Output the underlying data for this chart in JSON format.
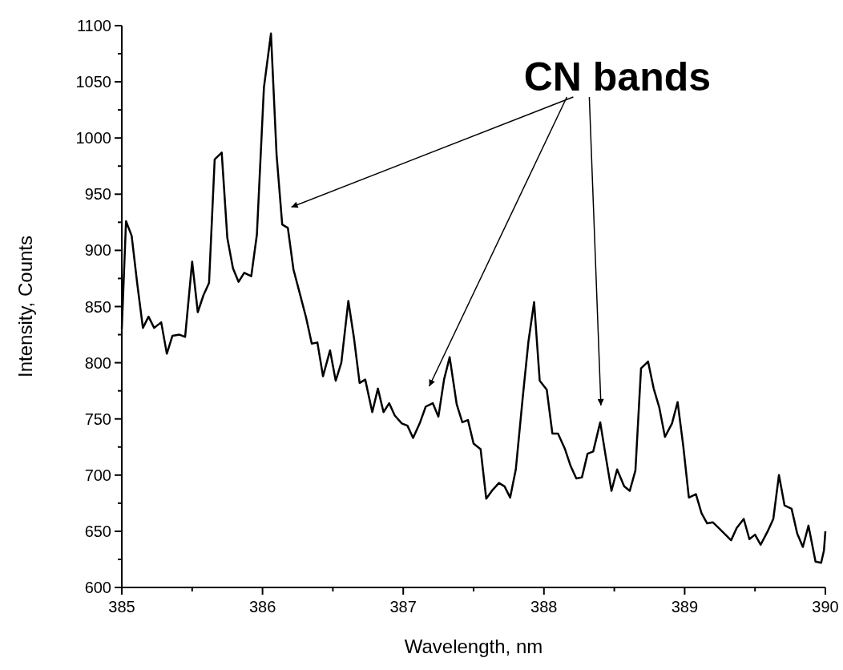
{
  "chart_data": {
    "type": "line",
    "xlabel": "Wavelength, nm",
    "ylabel": "Intensity, Counts",
    "annotations": [
      "CN bands"
    ],
    "xlim": [
      385,
      390
    ],
    "xticks": [
      385,
      386,
      387,
      388,
      389,
      390
    ],
    "ylim": [
      600,
      1100
    ],
    "yticks": [
      600,
      650,
      700,
      750,
      800,
      850,
      900,
      950,
      1000,
      1050,
      1100
    ],
    "grid": false,
    "line_style": "solid",
    "series": [
      {
        "color": "#000000",
        "x": [
          385.0,
          385.03,
          385.07,
          385.11,
          385.15,
          385.19,
          385.23,
          385.28,
          385.32,
          385.36,
          385.41,
          385.45,
          385.5,
          385.54,
          385.58,
          385.62,
          385.66,
          385.71,
          385.75,
          385.79,
          385.83,
          385.87,
          385.92,
          385.96,
          386.01,
          386.06,
          386.1,
          386.14,
          386.18,
          386.22,
          386.26,
          386.31,
          386.35,
          386.39,
          386.43,
          386.48,
          386.52,
          386.56,
          386.61,
          386.65,
          386.69,
          386.73,
          386.78,
          386.82,
          386.86,
          386.9,
          386.94,
          386.99,
          387.03,
          387.07,
          387.12,
          387.16,
          387.21,
          387.25,
          387.29,
          387.33,
          387.38,
          387.42,
          387.46,
          387.5,
          387.55,
          387.59,
          387.63,
          387.68,
          387.72,
          387.76,
          387.8,
          387.85,
          387.89,
          387.93,
          387.97,
          388.02,
          388.06,
          388.1,
          388.15,
          388.19,
          388.23,
          388.27,
          388.31,
          388.35,
          388.4,
          388.44,
          388.48,
          388.52,
          388.57,
          388.61,
          388.65,
          388.69,
          388.74,
          388.78,
          388.82,
          388.86,
          388.91,
          388.95,
          388.99,
          389.03,
          389.08,
          389.12,
          389.16,
          389.2,
          389.25,
          389.29,
          389.33,
          389.37,
          389.42,
          389.46,
          389.5,
          389.54,
          389.59,
          389.63,
          389.67,
          389.71,
          389.76,
          389.8,
          389.84,
          389.88,
          389.93,
          389.97,
          389.99,
          390.0
        ],
        "values": [
          830,
          926,
          913,
          870,
          831,
          841,
          831,
          836,
          808,
          824,
          825,
          823,
          890,
          845,
          860,
          871,
          981,
          987,
          911,
          884,
          872,
          880,
          877,
          914,
          1045,
          1093,
          985,
          923,
          920,
          883,
          864,
          840,
          817,
          818,
          788,
          811,
          784,
          800,
          855,
          822,
          782,
          785,
          756,
          777,
          756,
          764,
          753,
          746,
          744,
          733,
          747,
          761,
          764,
          752,
          785,
          805,
          763,
          747,
          749,
          728,
          723,
          679,
          686,
          693,
          690,
          680,
          705,
          770,
          819,
          854,
          784,
          776,
          737,
          737,
          723,
          708,
          697,
          698,
          719,
          721,
          747,
          716,
          686,
          705,
          690,
          686,
          704,
          795,
          801,
          777,
          760,
          734,
          746,
          765,
          726,
          680,
          683,
          666,
          657,
          658,
          652,
          647,
          642,
          653,
          661,
          643,
          647,
          638,
          650,
          661,
          700,
          673,
          670,
          648,
          636,
          655,
          623,
          622,
          633,
          650
        ]
      }
    ]
  }
}
